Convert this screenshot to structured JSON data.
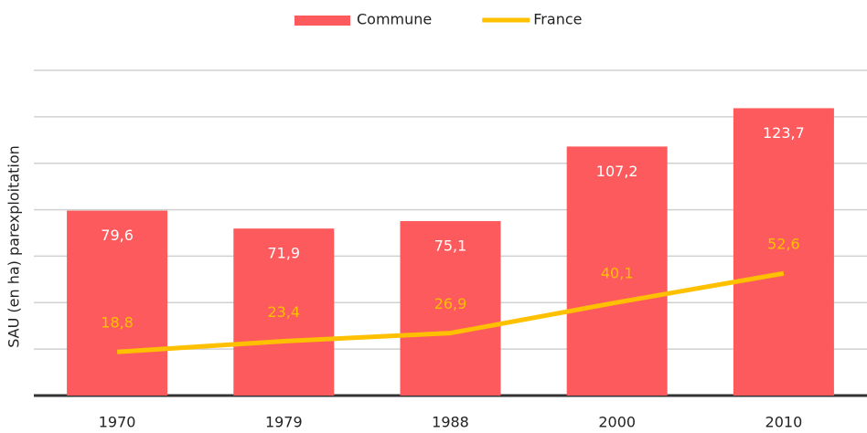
{
  "chart_data": {
    "type": "bar_line",
    "y_label": "SAU (en ha) parexploitation",
    "categories": [
      "1970",
      "1979",
      "1988",
      "2000",
      "2010"
    ],
    "series": [
      {
        "name": "Commune",
        "type": "bar",
        "color": "#fd5a5e",
        "label_color": "#ffffff",
        "values": [
          79.6,
          71.9,
          75.1,
          107.2,
          123.7
        ],
        "value_labels": [
          "79,6",
          "71,9",
          "75,1",
          "107,2",
          "123,7"
        ]
      },
      {
        "name": "France",
        "type": "line",
        "color": "#ffc000",
        "label_color": "#ffc000",
        "values": [
          18.8,
          23.4,
          26.9,
          40.1,
          52.6
        ],
        "value_labels": [
          "18,8",
          "23,4",
          "26,9",
          "40,1",
          "52,6"
        ]
      }
    ],
    "ylim": [
      0,
      140
    ],
    "yticks": [
      0,
      20,
      40,
      60,
      80,
      100,
      120,
      140
    ],
    "grid": true,
    "legend": "top"
  }
}
